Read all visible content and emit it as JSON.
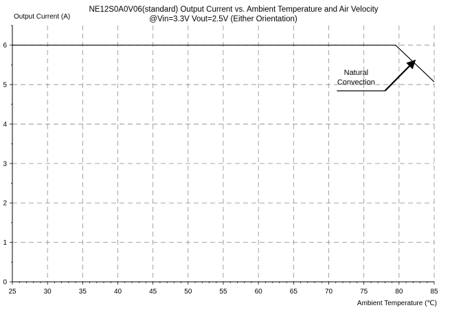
{
  "chart_data": {
    "type": "line",
    "title": "NE12S0A0V06(standard)  Output Current vs. Ambient Temperature and Air Velocity",
    "subtitle": "@Vin=3.3V Vout=2.5V (Either Orientation)",
    "xlabel": "Ambient Temperature (℃)",
    "ylabel": "Output Current (A)",
    "xlim": [
      25,
      85
    ],
    "ylim": [
      0,
      6.5
    ],
    "x_ticks": [
      "25",
      "30",
      "35",
      "40",
      "45",
      "50",
      "55",
      "60",
      "65",
      "70",
      "75",
      "80",
      "85"
    ],
    "y_ticks": [
      "0",
      "1",
      "2",
      "3",
      "4",
      "5",
      "6"
    ],
    "grid": true,
    "grid_style": "dashed",
    "series": [
      {
        "x": [
          25,
          79.5,
          85
        ],
        "y": [
          6,
          6,
          5.07
        ],
        "color": "#000000"
      }
    ],
    "annotations": [
      {
        "text_lines": [
          "Natural",
          "Convection"
        ],
        "arrow_from": [
          78,
          4.86
        ],
        "arrow_to": [
          82.2,
          5.6
        ]
      }
    ]
  }
}
